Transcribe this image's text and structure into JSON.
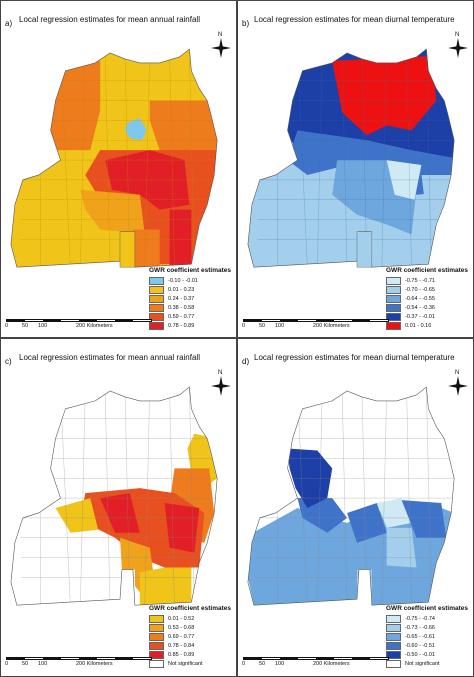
{
  "panels": [
    {
      "label": "a)",
      "title": "Local regression estimates for mean annual rainfall",
      "legend_title": "GWR coefficient estimates",
      "legend": [
        {
          "label": "-0.10 - -0.01",
          "color": "#7ec8ee"
        },
        {
          "label": "0.01 - 0.23",
          "color": "#f0c419"
        },
        {
          "label": "0.24 - 0.37",
          "color": "#f0a31a"
        },
        {
          "label": "0.38 - 0.58",
          "color": "#ee7b1c"
        },
        {
          "label": "0.59 - 0.77",
          "color": "#e8511f"
        },
        {
          "label": "0.78 - 0.89",
          "color": "#e21f26"
        }
      ],
      "scale": {
        "ticks": [
          "0",
          "50",
          "100",
          "200 Kilometers"
        ]
      },
      "north": "N"
    },
    {
      "label": "b)",
      "title": "Local regression estimates for mean diurnal temperature",
      "legend_title": "GWR coefficient estimates",
      "legend": [
        {
          "label": "-0.75 - -0.71",
          "color": "#cfe9f5"
        },
        {
          "label": "-0.70 - -0.65",
          "color": "#a4cfec"
        },
        {
          "label": "-0.64 - -0.55",
          "color": "#6ea7de"
        },
        {
          "label": "-0.54 - -0.36",
          "color": "#3f73c9"
        },
        {
          "label": "-0.37 - -0.01",
          "color": "#1d3fa8"
        },
        {
          "label": "0.01 - 0.16",
          "color": "#ee1111"
        }
      ],
      "scale": {
        "ticks": [
          "0",
          "50",
          "100",
          "200 Kilometers"
        ]
      },
      "north": "N"
    },
    {
      "label": "c)",
      "title": "Local regression estimates for mean annual rainfall",
      "legend_title": "GWR coefficient estimates",
      "legend": [
        {
          "label": "0.01 - 0.52",
          "color": "#f0c419"
        },
        {
          "label": "0.53 - 0.68",
          "color": "#f0a31a"
        },
        {
          "label": "0.69 - 0.77",
          "color": "#ee7b1c"
        },
        {
          "label": "0.78 - 0.84",
          "color": "#e8511f"
        },
        {
          "label": "0.85 - 0.89",
          "color": "#e21f26"
        },
        {
          "label": "Not significant",
          "color": "#ffffff"
        }
      ],
      "scale": {
        "ticks": [
          "0",
          "50",
          "100",
          "200 Kilometers"
        ]
      },
      "north": "N"
    },
    {
      "label": "d)",
      "title": "Local regression estimates for mean diurnal temperature",
      "legend_title": "GWR coefficient estimates",
      "legend": [
        {
          "label": "-0.75 - -0.74",
          "color": "#cfe9f5"
        },
        {
          "label": "-0.73 - -0.66",
          "color": "#a4cfec"
        },
        {
          "label": "-0.65 - -0.61",
          "color": "#6ea7de"
        },
        {
          "label": "-0.60 - -0.51",
          "color": "#3f73c9"
        },
        {
          "label": "-0.50 - -0.01",
          "color": "#1d3fa8"
        },
        {
          "label": "Not significant",
          "color": "#ffffff"
        }
      ],
      "scale": {
        "ticks": [
          "0",
          "50",
          "100",
          "200 Kilometers"
        ]
      },
      "north": "N"
    }
  ]
}
